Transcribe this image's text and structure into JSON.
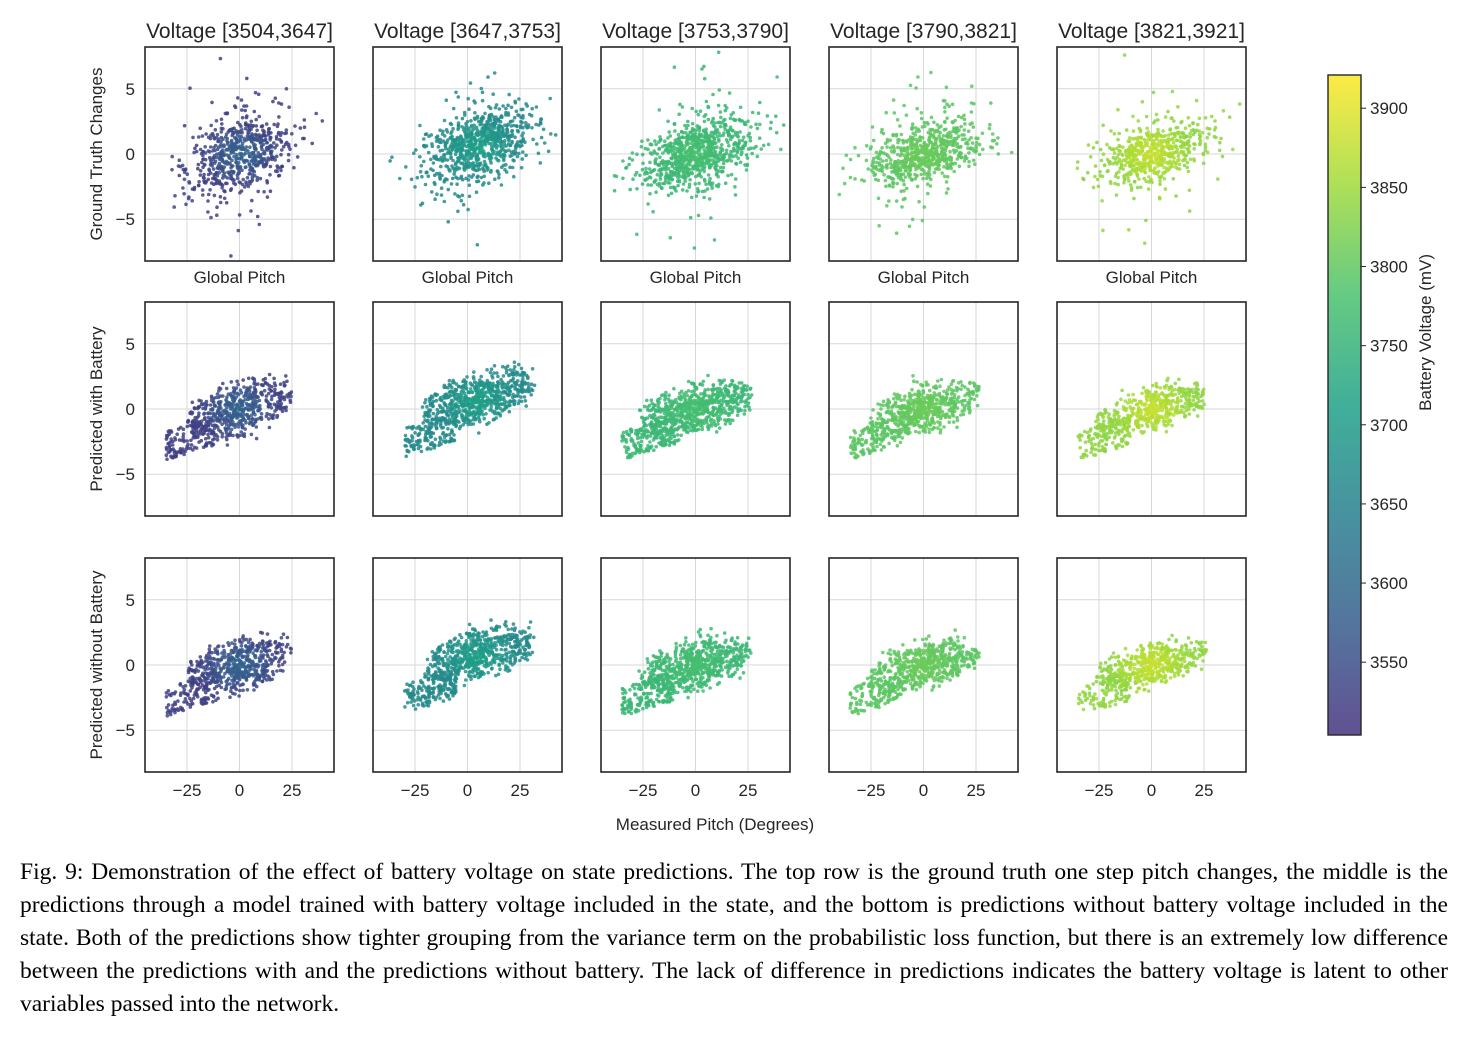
{
  "chart_data": {
    "type": "scatter",
    "figure_label": "Fig. 9",
    "columns": [
      {
        "title": "Voltage [3504,3647]",
        "voltage_range": [
          3504,
          3647
        ]
      },
      {
        "title": "Voltage [3647,3753]",
        "voltage_range": [
          3647,
          3753
        ]
      },
      {
        "title": "Voltage [3753,3790]",
        "voltage_range": [
          3753,
          3790
        ]
      },
      {
        "title": "Voltage [3790,3821]",
        "voltage_range": [
          3790,
          3821
        ]
      },
      {
        "title": "Voltage [3821,3921]",
        "voltage_range": [
          3821,
          3921
        ]
      }
    ],
    "rows": [
      {
        "ylabel": "Ground Truth Changes",
        "xlabel": "Global Pitch"
      },
      {
        "ylabel": "Predicted with Battery",
        "xlabel": ""
      },
      {
        "ylabel": "Predicted  without Battery",
        "xlabel": ""
      }
    ],
    "shared_xlabel": "Measured Pitch (Degrees)",
    "xlim": [
      -45,
      45
    ],
    "ylim": [
      -8.2,
      8.2
    ],
    "xticks": [
      -25,
      0,
      25
    ],
    "xtick_labels": [
      "−25",
      "0",
      "25"
    ],
    "yticks": [
      5,
      0,
      -5
    ],
    "ytick_labels": [
      "5",
      "0",
      "−5"
    ],
    "grid": true,
    "cluster_centers": [
      {
        "x": 0,
        "y": 0,
        "spread_x": 14,
        "spread_y": 1.3,
        "points_per_panel": 650
      },
      {
        "x": 5,
        "y": 0.6,
        "spread_x": 15,
        "spread_y": 1.2,
        "points_per_panel": 800
      },
      {
        "x": 0,
        "y": 0,
        "spread_x": 15,
        "spread_y": 1.2,
        "points_per_panel": 850
      },
      {
        "x": 0,
        "y": 0,
        "spread_x": 15,
        "spread_y": 1.1,
        "points_per_panel": 700
      },
      {
        "x": 0,
        "y": 0,
        "spread_x": 15,
        "spread_y": 1.0,
        "points_per_panel": 600
      }
    ],
    "colorbar": {
      "label": "Battery Voltage (mV)",
      "range": [
        3504,
        3921
      ],
      "ticks": [
        3550,
        3600,
        3650,
        3700,
        3750,
        3800,
        3850,
        3900
      ],
      "tick_labels": [
        "3550",
        "3600",
        "3650",
        "3700",
        "3750",
        "3800",
        "3850",
        "3900"
      ],
      "colormap": "viridis",
      "stops": [
        "#46327e",
        "#365c8d",
        "#277f8e",
        "#1fa187",
        "#4ac16d",
        "#a0da39",
        "#fde725"
      ]
    }
  },
  "caption": "Fig. 9: Demonstration of the effect of battery voltage on state predictions. The top row is the ground truth one step pitch changes, the middle is the predictions through a model trained with battery voltage included in the state, and the bottom is predictions without battery voltage included in the state. Both of the predictions show tighter grouping from the variance term on the probabilistic loss function, but there is an extremely low difference between the predictions with and the predictions without battery. The lack of difference in predictions indicates the battery voltage is latent to other variables passed into the network."
}
